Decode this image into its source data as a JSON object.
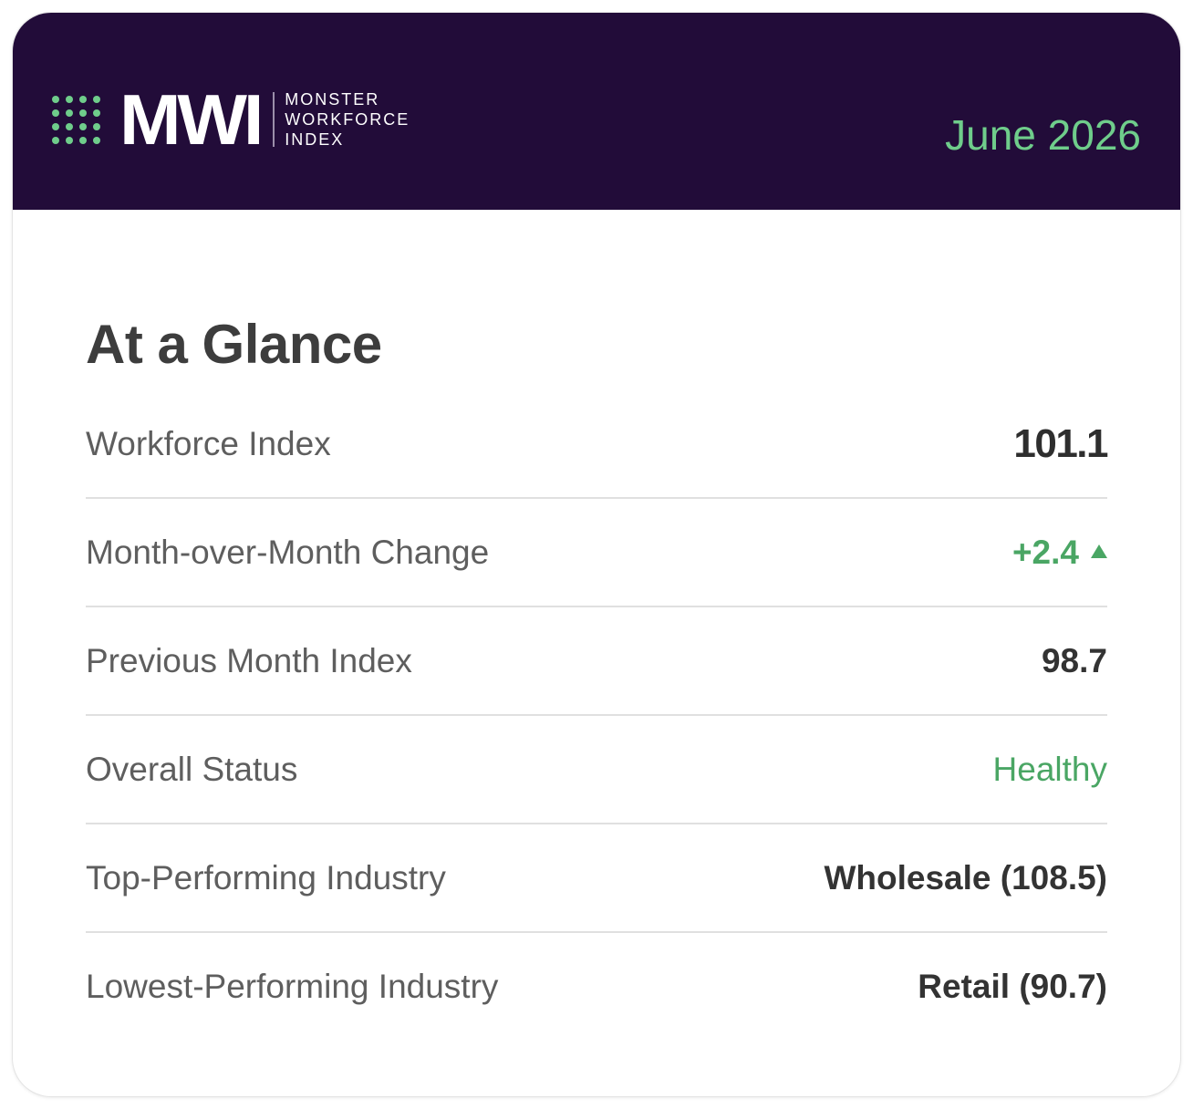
{
  "header": {
    "logo_mark": "MWI",
    "logo_lines": [
      "MONSTER",
      "WORKFORCE",
      "INDEX"
    ],
    "date": "June 2026",
    "icon": "dot-grid-icon"
  },
  "colors": {
    "header_background": "#220c39",
    "accent_green": "#6fcd8b",
    "positive_green": "#4aa664",
    "text_dark": "#333333",
    "text_label": "#5e5e5e"
  },
  "main": {
    "title": "At a Glance",
    "rows": [
      {
        "label": "Workforce Index",
        "value": "101.1"
      },
      {
        "label": "Month-over-Month Change",
        "value": "+2.4",
        "trend_icon": "triangle-up-icon"
      },
      {
        "label": "Previous Month Index",
        "value": "98.7"
      },
      {
        "label": "Overall Status",
        "value": "Healthy"
      },
      {
        "label": "Top-Performing Industry",
        "value": "Wholesale (108.5)"
      },
      {
        "label": "Lowest-Performing Industry",
        "value": "Retail (90.7)"
      }
    ]
  }
}
